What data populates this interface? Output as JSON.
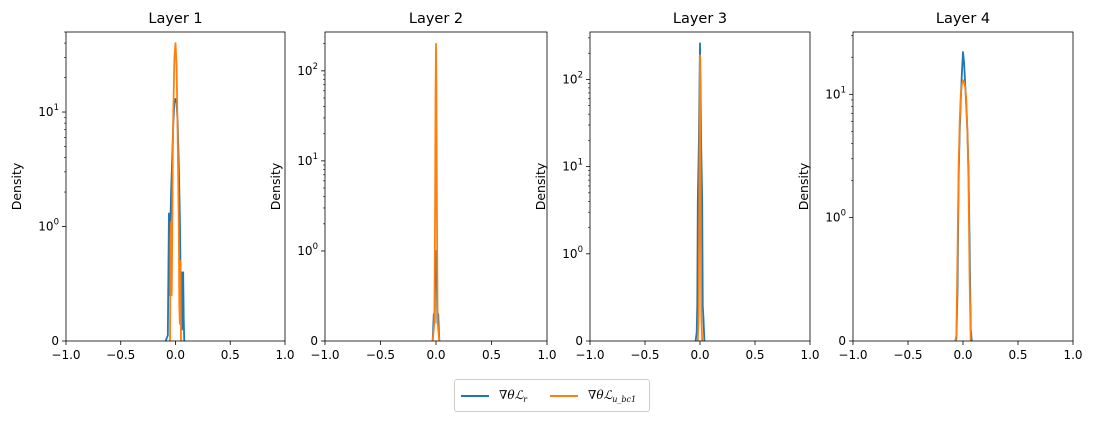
{
  "chart_data": [
    {
      "type": "line",
      "title": "Layer 1",
      "xlabel": "",
      "ylabel": "Density",
      "xlim": [
        -1.0,
        1.0
      ],
      "yscale": "symlog",
      "ylim": [
        0,
        50
      ],
      "x_ticks": [
        "−1.0",
        "−0.5",
        "0.0",
        "0.5",
        "1.0"
      ],
      "y_ticks": [
        {
          "value": 0,
          "label": "0"
        },
        {
          "value": 1,
          "label": "10^0"
        },
        {
          "value": 10,
          "label": "10^1"
        }
      ],
      "series": [
        {
          "name": "r",
          "color": "#1f77b4",
          "x": [
            -0.09,
            -0.07,
            -0.06,
            -0.055,
            -0.05,
            -0.04,
            -0.03,
            -0.02,
            -0.01,
            0.0,
            0.01,
            0.02,
            0.03,
            0.04,
            0.05,
            0.055,
            0.06,
            0.065,
            0.07,
            0.075,
            0.08
          ],
          "y": [
            0,
            0.05,
            1.3,
            0.4,
            0.9,
            2.0,
            4.0,
            8.0,
            12.0,
            13.0,
            12.0,
            8.0,
            3.5,
            1.2,
            0.3,
            0.6,
            0.1,
            0.55,
            0.6,
            0.2,
            0
          ]
        },
        {
          "name": "bc1",
          "color": "#ff7f0e",
          "x": [
            -0.05,
            -0.045,
            -0.04,
            -0.035,
            -0.03,
            -0.025,
            -0.02,
            -0.01,
            0.0,
            0.01,
            0.02,
            0.03,
            0.035,
            0.04,
            0.045,
            0.05
          ],
          "y": [
            0,
            0.9,
            1.1,
            0.4,
            0.9,
            4.0,
            10.0,
            30.0,
            40.0,
            25.0,
            6.0,
            1.0,
            0.3,
            0.15,
            0.7,
            0
          ]
        }
      ]
    },
    {
      "type": "line",
      "title": "Layer 2",
      "xlabel": "",
      "ylabel": "Density",
      "xlim": [
        -1.0,
        1.0
      ],
      "yscale": "symlog",
      "ylim": [
        0,
        270
      ],
      "x_ticks": [
        "−1.0",
        "−0.5",
        "0.0",
        "0.5",
        "1.0"
      ],
      "y_ticks": [
        {
          "value": 0,
          "label": "0"
        },
        {
          "value": 1,
          "label": "10^0"
        },
        {
          "value": 10,
          "label": "10^1"
        },
        {
          "value": 100,
          "label": "10^2"
        }
      ],
      "series": [
        {
          "name": "r",
          "color": "#1f77b4",
          "x": [
            -0.03,
            -0.02,
            -0.012,
            -0.006,
            0.0,
            0.006,
            0.012,
            0.02,
            0.03
          ],
          "y": [
            0,
            0.3,
            0.2,
            0.9,
            1.0,
            0.8,
            0.2,
            0.3,
            0
          ]
        },
        {
          "name": "bc1",
          "color": "#ff7f0e",
          "x": [
            -0.03,
            -0.015,
            -0.008,
            -0.004,
            0.0,
            0.004,
            0.008,
            0.015,
            0.03
          ],
          "y": [
            0,
            0.2,
            3.0,
            60.0,
            200.0,
            60.0,
            3.0,
            0.2,
            0
          ]
        }
      ]
    },
    {
      "type": "line",
      "title": "Layer 3",
      "xlabel": "",
      "ylabel": "Density",
      "xlim": [
        -1.0,
        1.0
      ],
      "yscale": "symlog",
      "ylim": [
        0,
        350
      ],
      "x_ticks": [
        "−1.0",
        "−0.5",
        "0.0",
        "0.5",
        "1.0"
      ],
      "y_ticks": [
        {
          "value": 0,
          "label": "0"
        },
        {
          "value": 1,
          "label": "10^0"
        },
        {
          "value": 10,
          "label": "10^1"
        },
        {
          "value": 100,
          "label": "10^2"
        }
      ],
      "series": [
        {
          "name": "r",
          "color": "#1f77b4",
          "x": [
            -0.04,
            -0.03,
            -0.025,
            -0.02,
            -0.01,
            -0.004,
            0.0,
            0.004,
            0.01,
            0.02,
            0.025,
            0.03,
            0.04
          ],
          "y": [
            0,
            0.1,
            0.4,
            4.0,
            20.0,
            100.0,
            260.0,
            100.0,
            20.0,
            4.0,
            0.4,
            0.3,
            0
          ]
        },
        {
          "name": "bc1",
          "color": "#ff7f0e",
          "x": [
            -0.02,
            -0.012,
            -0.006,
            -0.003,
            0.0,
            0.003,
            0.006,
            0.012,
            0.02
          ],
          "y": [
            0,
            0.3,
            5.0,
            40.0,
            190.0,
            40.0,
            5.0,
            0.3,
            0
          ]
        }
      ]
    },
    {
      "type": "line",
      "title": "Layer 4",
      "xlabel": "",
      "ylabel": "Density",
      "xlim": [
        -1.0,
        1.0
      ],
      "yscale": "symlog",
      "ylim": [
        0,
        32
      ],
      "x_ticks": [
        "−1.0",
        "−0.5",
        "0.0",
        "0.5",
        "1.0"
      ],
      "y_ticks": [
        {
          "value": 0,
          "label": "0"
        },
        {
          "value": 1,
          "label": "10^0"
        },
        {
          "value": 10,
          "label": "10^1"
        }
      ],
      "series": [
        {
          "name": "r",
          "color": "#1f77b4",
          "x": [
            -0.07,
            -0.06,
            -0.05,
            -0.04,
            -0.03,
            -0.02,
            -0.01,
            0.0,
            0.01,
            0.02,
            0.03,
            0.04,
            0.05,
            0.06,
            0.07,
            0.08
          ],
          "y": [
            0,
            0.02,
            0.4,
            2.0,
            5.0,
            9.0,
            15.0,
            22.0,
            18.0,
            12.0,
            8.0,
            5.0,
            2.5,
            0.8,
            0.1,
            0
          ]
        },
        {
          "name": "bc1",
          "color": "#ff7f0e",
          "x": [
            -0.07,
            -0.06,
            -0.05,
            -0.04,
            -0.03,
            -0.02,
            -0.01,
            0.0,
            0.01,
            0.02,
            0.03,
            0.04,
            0.05,
            0.06,
            0.07
          ],
          "y": [
            0,
            0.05,
            0.7,
            2.5,
            6.0,
            10.0,
            12.0,
            13.0,
            12.5,
            11.5,
            9.0,
            5.0,
            2.0,
            0.5,
            0
          ]
        }
      ]
    }
  ],
  "legend": {
    "placement": "bottom-center",
    "entries": [
      {
        "color": "#1f77b4",
        "prefix": "∇θℒ",
        "subscript": "r"
      },
      {
        "color": "#ff7f0e",
        "prefix": "∇θℒ",
        "subscript": "u_bc1"
      }
    ]
  }
}
